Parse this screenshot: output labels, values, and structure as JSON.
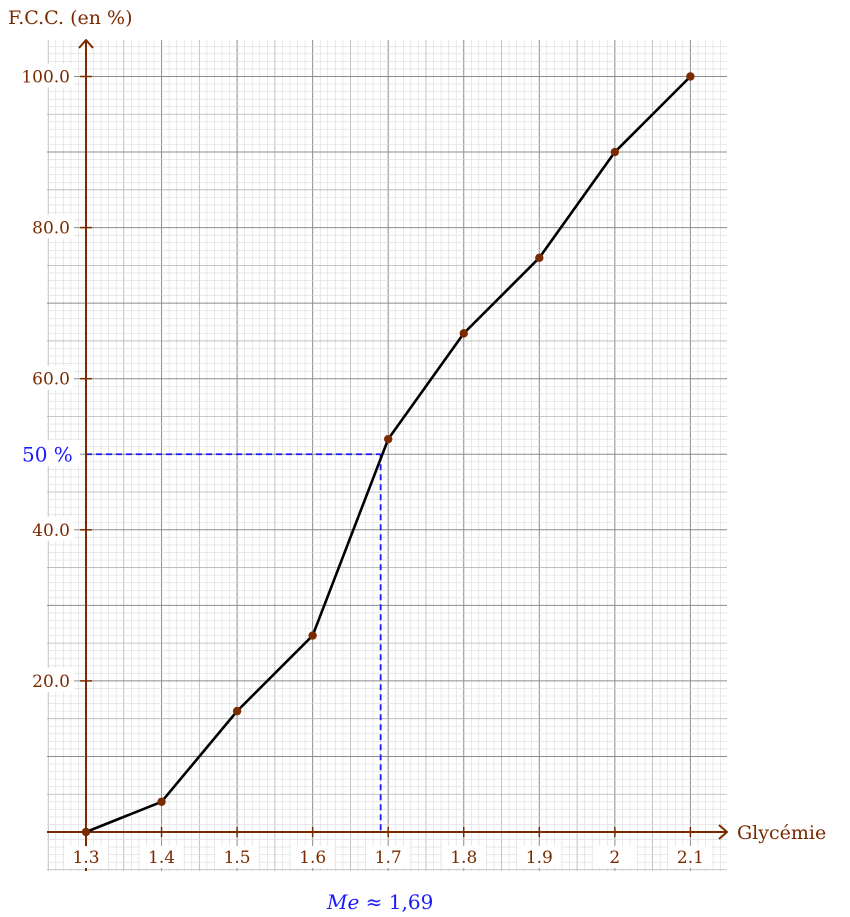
{
  "chart_data": {
    "type": "line",
    "x": [
      1.3,
      1.4,
      1.5,
      1.6,
      1.7,
      1.8,
      1.9,
      2,
      2.1
    ],
    "series": [
      {
        "values": [
          0,
          4,
          16,
          26,
          52,
          66,
          76,
          90,
          100
        ],
        "color": "#000000",
        "marker_color": "#7a2a00"
      }
    ],
    "x_tick_labels": [
      "1.3",
      "1.4",
      "1.5",
      "1.6",
      "1.7",
      "1.8",
      "1.9",
      "2",
      "2.1"
    ],
    "y_ticks": [
      20,
      40,
      60,
      80,
      100
    ],
    "y_tick_labels": [
      "20.0",
      "40.0",
      "60.0",
      "80.0",
      "100.0"
    ],
    "xlabel": "Glycémie",
    "ylabel": "F.C.C. (en %)",
    "xlim": [
      1.3,
      2.15
    ],
    "ylim": [
      0,
      105
    ],
    "grid": true,
    "median": {
      "x": 1.69,
      "y": 50,
      "y_label": "50 %",
      "x_label_symbol": "Me",
      "x_label_value": "≈ 1,69",
      "color": "#1a1aff"
    },
    "axis_color": "#7a2a00",
    "label_color": "#7a2a00"
  }
}
